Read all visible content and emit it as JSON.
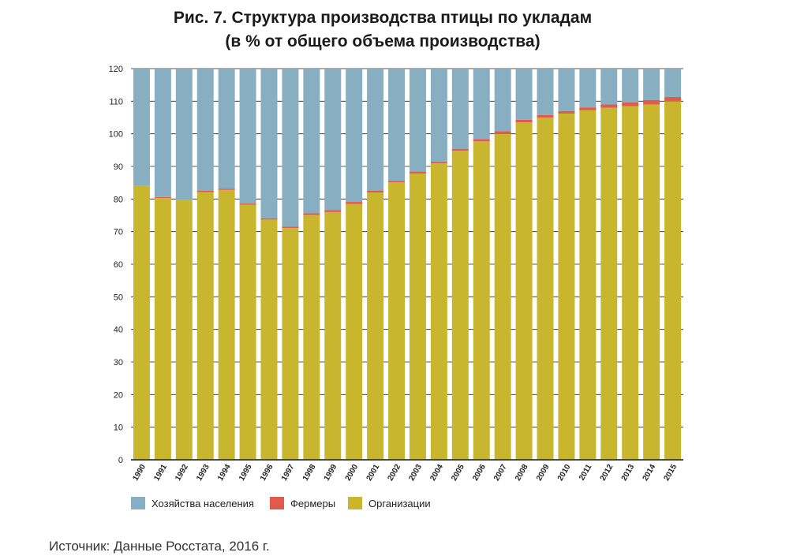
{
  "chart_data": {
    "type": "bar",
    "stacked": true,
    "title": "Рис. 7. Структура производства птицы по укладам",
    "subtitle": "(в % от общего объема производства)",
    "categories": [
      "1990",
      "1991",
      "1992",
      "1993",
      "1994",
      "1995",
      "1996",
      "1997",
      "1998",
      "1999",
      "2000",
      "2001",
      "2002",
      "2003",
      "2004",
      "2005",
      "2006",
      "2007",
      "2008",
      "2009",
      "2010",
      "2011",
      "2012",
      "2013",
      "2014",
      "2015"
    ],
    "series": [
      {
        "name": "Организации",
        "color": "#c8b72e",
        "values": [
          84,
          80.3,
          79.8,
          82.1,
          82.8,
          78.2,
          73.7,
          71.1,
          75.1,
          76,
          78.5,
          82,
          85.1,
          87.8,
          91,
          94.8,
          97.7,
          100,
          103.5,
          105,
          106.2,
          107.2,
          108,
          108.5,
          109,
          110
        ]
      },
      {
        "name": "Фермеры",
        "color": "#e05a4e",
        "values": [
          0,
          0.3,
          0,
          0.4,
          0.4,
          0.4,
          0.4,
          0.4,
          0.5,
          0.6,
          0.6,
          0.5,
          0.5,
          0.6,
          0.5,
          0.6,
          0.7,
          0.8,
          0.8,
          0.8,
          0.8,
          0.9,
          1,
          1.1,
          1.4,
          1.3
        ]
      },
      {
        "name": "Хозяйства населения",
        "color": "#87afc1",
        "values": [
          36,
          39.4,
          40.2,
          37.5,
          36.8,
          41.4,
          45.9,
          48.5,
          44.4,
          43.4,
          40.9,
          37.5,
          34.4,
          31.6,
          28.5,
          24.6,
          21.6,
          19.2,
          15.7,
          14.2,
          13,
          11.9,
          11,
          10.4,
          9.6,
          8.7
        ]
      }
    ],
    "legend_order": [
      "Хозяйства населения",
      "Фермеры",
      "Организации"
    ],
    "ylim": [
      0,
      120
    ],
    "yticks": [
      0,
      10,
      20,
      30,
      40,
      50,
      60,
      70,
      80,
      90,
      100,
      110,
      120
    ],
    "grid": true,
    "legend_position": "bottom-left"
  },
  "source": "Источник: Данные Росстата, 2016 г."
}
